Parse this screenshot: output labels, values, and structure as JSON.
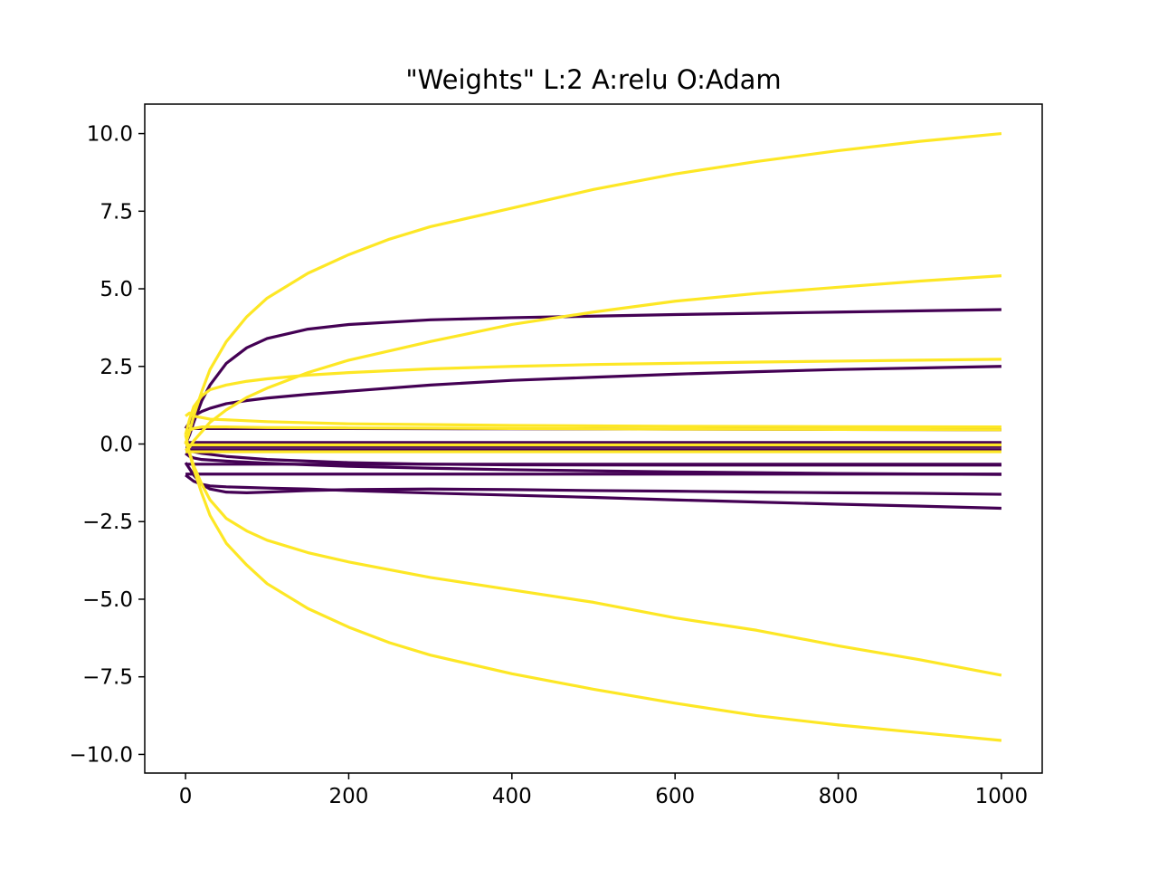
{
  "chart_data": {
    "type": "line",
    "title": "\"Weights\" L:2 A:relu O:Adam",
    "xlabel": "",
    "ylabel": "",
    "xlim": [
      -50,
      1050
    ],
    "ylim": [
      -10.6,
      10.95
    ],
    "xticks": [
      0,
      200,
      400,
      600,
      800,
      1000
    ],
    "xtick_labels": [
      "0",
      "200",
      "400",
      "600",
      "800",
      "1000"
    ],
    "yticks": [
      10,
      7.5,
      5,
      2.5,
      0,
      -2.5,
      -5,
      -7.5,
      -10
    ],
    "ytick_labels": [
      "10.0",
      "7.5",
      "5.0",
      "2.5",
      "0.0",
      "−2.5",
      "−5.0",
      "−7.5",
      "−10.0"
    ],
    "grid": false,
    "legend": "none",
    "colors": {
      "dark": "#440154",
      "yellow": "#fde725"
    },
    "series": [
      {
        "color": "dark",
        "x": [
          0,
          5,
          10,
          20,
          30,
          50,
          75,
          100,
          150,
          200,
          300,
          400,
          500,
          600,
          700,
          800,
          900,
          1000
        ],
        "y": [
          0.0,
          0.3,
          0.7,
          1.4,
          1.9,
          2.6,
          3.1,
          3.4,
          3.7,
          3.85,
          4.0,
          4.07,
          4.12,
          4.17,
          4.21,
          4.25,
          4.29,
          4.33
        ]
      },
      {
        "color": "dark",
        "x": [
          0,
          5,
          10,
          20,
          30,
          50,
          75,
          100,
          150,
          200,
          300,
          400,
          500,
          600,
          700,
          800,
          900,
          1000
        ],
        "y": [
          0.5,
          0.7,
          0.9,
          1.05,
          1.15,
          1.3,
          1.4,
          1.48,
          1.6,
          1.7,
          1.9,
          2.05,
          2.15,
          2.25,
          2.33,
          2.4,
          2.45,
          2.5
        ]
      },
      {
        "color": "dark",
        "x": [
          0,
          50,
          100,
          200,
          400,
          600,
          800,
          1000
        ],
        "y": [
          0.5,
          0.5,
          0.5,
          0.5,
          0.49,
          0.48,
          0.47,
          0.46
        ]
      },
      {
        "color": "dark",
        "x": [
          0,
          1000
        ],
        "y": [
          -0.08,
          -0.08
        ]
      },
      {
        "color": "dark",
        "x": [
          0,
          1000
        ],
        "y": [
          -0.18,
          -0.18
        ]
      },
      {
        "color": "dark",
        "x": [
          0,
          1000
        ],
        "y": [
          0.05,
          0.05
        ]
      },
      {
        "color": "dark",
        "x": [
          0,
          5,
          10,
          20,
          50,
          100,
          200,
          300,
          400,
          600,
          800,
          1000
        ],
        "y": [
          -0.15,
          -0.2,
          -0.25,
          -0.3,
          -0.4,
          -0.5,
          -0.6,
          -0.65,
          -0.67,
          -0.68,
          -0.68,
          -0.68
        ]
      },
      {
        "color": "dark",
        "x": [
          0,
          1000
        ],
        "y": [
          -0.65,
          -0.65
        ]
      },
      {
        "color": "dark",
        "x": [
          0,
          5,
          10,
          20,
          50,
          100,
          200,
          300,
          400,
          600,
          800,
          1000
        ],
        "y": [
          -0.3,
          -0.4,
          -0.45,
          -0.5,
          -0.55,
          -0.62,
          -0.72,
          -0.78,
          -0.83,
          -0.9,
          -0.95,
          -0.98
        ]
      },
      {
        "color": "dark",
        "x": [
          0,
          1000
        ],
        "y": [
          -0.97,
          -0.97
        ]
      },
      {
        "color": "dark",
        "x": [
          0,
          5,
          10,
          20,
          30,
          50,
          75,
          100,
          150,
          200,
          300,
          400,
          500,
          600,
          700,
          800,
          900,
          1000
        ],
        "y": [
          -0.6,
          -0.8,
          -1.0,
          -1.3,
          -1.45,
          -1.55,
          -1.57,
          -1.55,
          -1.5,
          -1.47,
          -1.45,
          -1.47,
          -1.5,
          -1.52,
          -1.55,
          -1.57,
          -1.59,
          -1.62
        ]
      },
      {
        "color": "dark",
        "x": [
          0,
          5,
          10,
          20,
          30,
          50,
          75,
          100,
          150,
          200,
          300,
          400,
          500,
          600,
          700,
          800,
          900,
          1000
        ],
        "y": [
          -1.0,
          -1.1,
          -1.2,
          -1.3,
          -1.35,
          -1.38,
          -1.4,
          -1.42,
          -1.45,
          -1.5,
          -1.58,
          -1.65,
          -1.72,
          -1.8,
          -1.87,
          -1.94,
          -2.0,
          -2.07
        ]
      },
      {
        "color": "yellow",
        "x": [
          0,
          5,
          10,
          20,
          30,
          50,
          75,
          100,
          150,
          200,
          250,
          300,
          400,
          500,
          600,
          700,
          800,
          900,
          1000
        ],
        "y": [
          0.0,
          0.4,
          0.9,
          1.7,
          2.4,
          3.3,
          4.1,
          4.7,
          5.5,
          6.1,
          6.6,
          7.0,
          7.6,
          8.2,
          8.7,
          9.1,
          9.45,
          9.75,
          10.0
        ]
      },
      {
        "color": "yellow",
        "x": [
          0,
          5,
          10,
          20,
          30,
          50,
          75,
          100,
          150,
          200,
          300,
          400,
          500,
          600,
          700,
          800,
          900,
          1000
        ],
        "y": [
          -0.2,
          -0.1,
          0.1,
          0.4,
          0.7,
          1.1,
          1.5,
          1.8,
          2.3,
          2.7,
          3.3,
          3.85,
          4.25,
          4.6,
          4.85,
          5.05,
          5.25,
          5.42
        ]
      },
      {
        "color": "yellow",
        "x": [
          0,
          5,
          10,
          20,
          30,
          50,
          75,
          100,
          150,
          200,
          300,
          400,
          500,
          600,
          700,
          800,
          900,
          1000
        ],
        "y": [
          0.3,
          0.8,
          1.2,
          1.55,
          1.75,
          1.9,
          2.02,
          2.1,
          2.22,
          2.3,
          2.42,
          2.5,
          2.56,
          2.6,
          2.64,
          2.67,
          2.7,
          2.73
        ]
      },
      {
        "color": "yellow",
        "x": [
          0,
          5,
          10,
          20,
          30,
          50,
          100,
          200,
          400,
          600,
          800,
          1000
        ],
        "y": [
          0.9,
          1.0,
          0.9,
          0.85,
          0.8,
          0.78,
          0.72,
          0.65,
          0.6,
          0.57,
          0.56,
          0.55
        ]
      },
      {
        "color": "yellow",
        "x": [
          0,
          5,
          10,
          20,
          50,
          100,
          200,
          400,
          600,
          800,
          1000
        ],
        "y": [
          0.3,
          0.45,
          0.5,
          0.55,
          0.55,
          0.53,
          0.52,
          0.5,
          0.48,
          0.47,
          0.46
        ]
      },
      {
        "color": "yellow",
        "x": [
          0,
          1000
        ],
        "y": [
          -0.03,
          -0.03
        ]
      },
      {
        "color": "yellow",
        "x": [
          0,
          1000
        ],
        "y": [
          -0.25,
          -0.25
        ]
      },
      {
        "color": "yellow",
        "x": [
          0,
          5,
          10,
          20,
          30,
          50,
          75,
          100,
          150,
          200,
          300,
          400,
          500,
          600,
          700,
          800,
          900,
          1000
        ],
        "y": [
          0.1,
          -0.3,
          -0.7,
          -1.3,
          -1.8,
          -2.4,
          -2.8,
          -3.1,
          -3.5,
          -3.8,
          -4.3,
          -4.7,
          -5.1,
          -5.6,
          -6.0,
          -6.5,
          -6.95,
          -7.45
        ]
      },
      {
        "color": "yellow",
        "x": [
          0,
          5,
          10,
          20,
          30,
          50,
          75,
          100,
          150,
          200,
          250,
          300,
          400,
          500,
          600,
          700,
          800,
          900,
          1000
        ],
        "y": [
          0.3,
          -0.3,
          -0.8,
          -1.6,
          -2.3,
          -3.2,
          -3.9,
          -4.5,
          -5.3,
          -5.9,
          -6.4,
          -6.8,
          -7.4,
          -7.9,
          -8.35,
          -8.75,
          -9.05,
          -9.3,
          -9.55
        ]
      }
    ]
  }
}
